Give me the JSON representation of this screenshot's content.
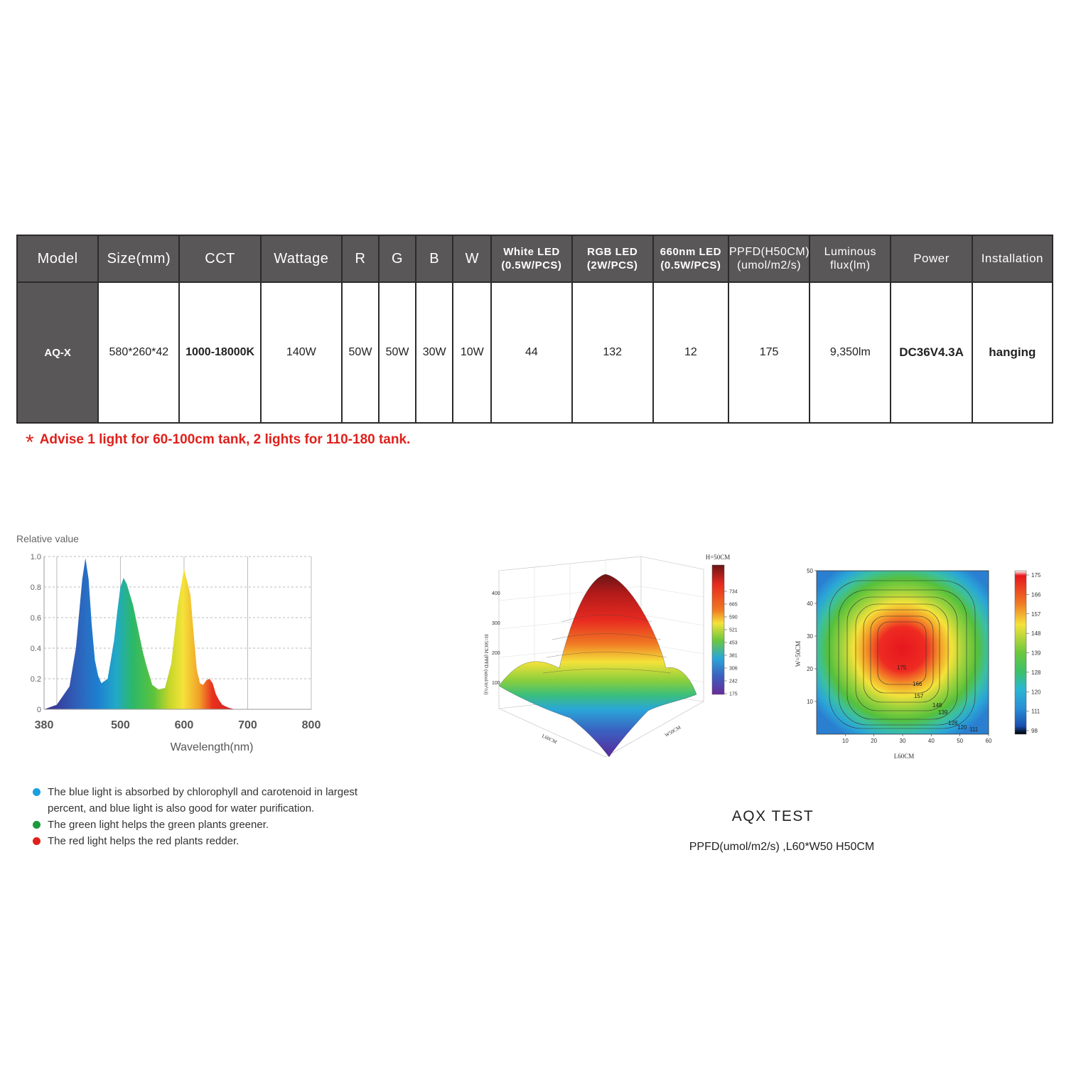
{
  "table": {
    "headers": {
      "model": "Model",
      "size": "Size(mm)",
      "cct": "CCT",
      "wattage": "Wattage",
      "r": "R",
      "g": "G",
      "b": "B",
      "w": "W",
      "white_led_1": "White LED",
      "white_led_2": "(0.5W/PCS)",
      "rgb_led_1": "RGB LED",
      "rgb_led_2": "(2W/PCS)",
      "led660_1": "660nm LED",
      "led660_2": "(0.5W/PCS)",
      "ppfd_1": "PPFD(H50CM)",
      "ppfd_2": "(umol/m2/s)",
      "flux_1": "Luminous",
      "flux_2": "flux(lm)",
      "power": "Power",
      "installation": "Installation"
    },
    "row": {
      "model": "AQ-X",
      "size": "580*260*42",
      "cct": "1000-18000K",
      "wattage": "140W",
      "r": "50W",
      "g": "50W",
      "b": "30W",
      "w": "10W",
      "white_led": "44",
      "rgb_led": "132",
      "led660": "12",
      "ppfd": "175",
      "flux": "9,350lm",
      "power": "DC36V4.3A",
      "installation": "hanging"
    }
  },
  "advice": {
    "star": "*",
    "text": "Advise 1 light for 60-100cm tank, 2 lights for 110-180 tank."
  },
  "chart_data": [
    {
      "type": "area",
      "ylabel": "Relative value",
      "xlabel": "Wavelength(nm)",
      "xlim": [
        380,
        800
      ],
      "ylim": [
        0,
        1.0
      ],
      "x_ticks": [
        "380",
        "500",
        "600",
        "700",
        "800"
      ],
      "y_ticks": [
        "0",
        "0.2",
        "0.4",
        "0.6",
        "0.8",
        "1.0"
      ],
      "x": [
        380,
        400,
        420,
        430,
        440,
        445,
        450,
        455,
        460,
        465,
        470,
        480,
        490,
        495,
        500,
        505,
        510,
        520,
        530,
        535,
        540,
        550,
        560,
        570,
        580,
        590,
        600,
        610,
        615,
        620,
        625,
        630,
        635,
        640,
        645,
        650,
        655,
        660,
        665,
        670,
        675,
        680,
        690,
        700,
        720,
        750,
        800
      ],
      "y": [
        0,
        0.03,
        0.15,
        0.4,
        0.85,
        0.99,
        0.85,
        0.55,
        0.32,
        0.22,
        0.17,
        0.2,
        0.45,
        0.64,
        0.8,
        0.86,
        0.82,
        0.68,
        0.48,
        0.38,
        0.3,
        0.16,
        0.13,
        0.14,
        0.3,
        0.68,
        0.92,
        0.75,
        0.5,
        0.26,
        0.17,
        0.16,
        0.19,
        0.2,
        0.17,
        0.1,
        0.06,
        0.03,
        0.02,
        0.01,
        0.005,
        0,
        0,
        0,
        0,
        0,
        0
      ]
    },
    {
      "type": "surface",
      "title": "H=50CM",
      "zlabel": "H=50CM (PPFD (umol/m²/s))",
      "xlabel": "L60CM",
      "ylabel": "W50CM",
      "colorbar": [
        "734",
        "665",
        "590",
        "521",
        "453",
        "381",
        "306",
        "242",
        "175"
      ]
    },
    {
      "type": "heatmap",
      "xlabel": "L60CM",
      "ylabel": "W=50CM",
      "x_ticks": [
        "10",
        "20",
        "30",
        "40",
        "50",
        "60"
      ],
      "y_ticks": [
        "10",
        "20",
        "30",
        "40",
        "50"
      ],
      "colorbar": [
        "175",
        "166",
        "157",
        "148",
        "139",
        "128",
        "120",
        "111",
        "98"
      ],
      "contour_labels": [
        "175",
        "166",
        "157",
        "148",
        "139",
        "128",
        "120",
        "111"
      ]
    }
  ],
  "bullets": [
    {
      "text1": "The blue light is absorbed by chlorophyll and carotenoid in largest",
      "text2": "percent, and blue light is also good for water purification.",
      "color": "#1aa0e0"
    },
    {
      "text1": "The green light helps the green plants greener.",
      "color": "#1d9a3c"
    },
    {
      "text1": "The red light helps the red plants redder.",
      "color": "#e0201b"
    }
  ],
  "test": {
    "title": "AQX  TEST",
    "subtitle": "PPFD(umol/m2/s) ,L60*W50 H50CM"
  }
}
